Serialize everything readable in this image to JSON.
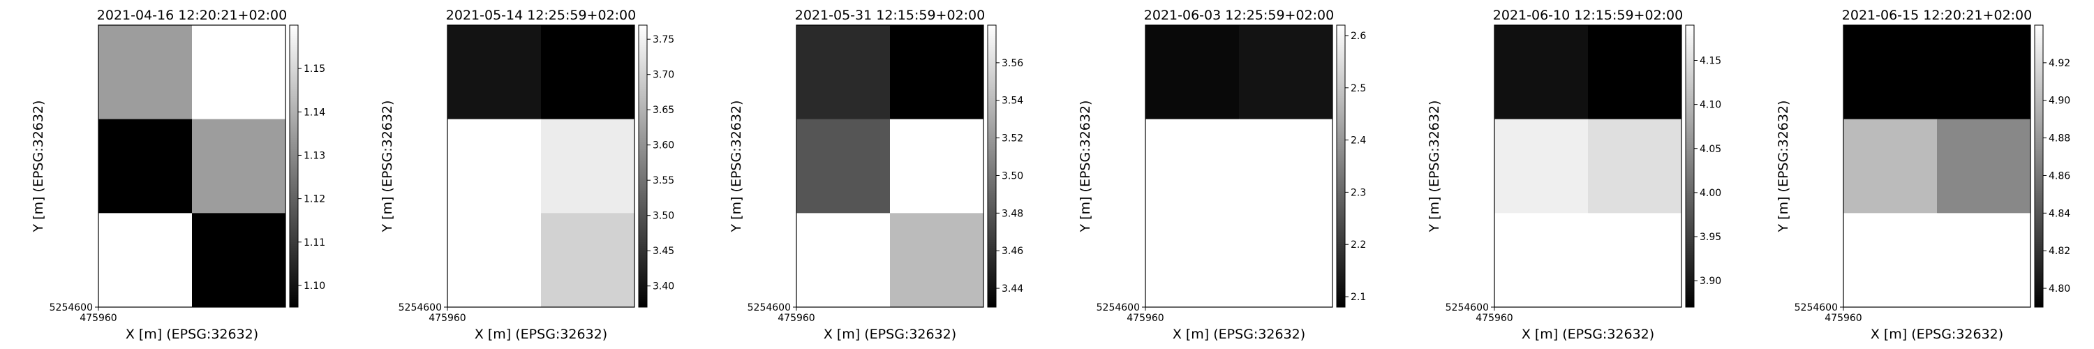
{
  "chart_data": [
    {
      "type": "heatmap",
      "title": "2021-04-16 12:20:21+02:00",
      "xlabel": "X [m] (EPSG:32632)",
      "ylabel": "Y [m] (EPSG:32632)",
      "x_tick_label": "475960",
      "y_tick_label": "5254600",
      "colormap": "grayscale",
      "grid": [
        [
          1.135,
          1.16
        ],
        [
          1.095,
          1.135
        ],
        [
          1.16,
          1.095
        ]
      ],
      "colorbar": {
        "range": [
          1.095,
          1.16
        ],
        "ticks": [
          "1.10",
          "1.11",
          "1.12",
          "1.13",
          "1.14",
          "1.15"
        ]
      }
    },
    {
      "type": "heatmap",
      "title": "2021-05-14 12:25:59+02:00",
      "xlabel": "X [m] (EPSG:32632)",
      "ylabel": "Y [m] (EPSG:32632)",
      "x_tick_label": "475960",
      "y_tick_label": "5254600",
      "colormap": "grayscale",
      "grid": [
        [
          3.4,
          3.37
        ],
        [
          3.77,
          3.74
        ],
        [
          3.77,
          3.7
        ]
      ],
      "colorbar": {
        "range": [
          3.37,
          3.77
        ],
        "ticks": [
          "3.40",
          "3.45",
          "3.50",
          "3.55",
          "3.60",
          "3.65",
          "3.70",
          "3.75"
        ]
      }
    },
    {
      "type": "heatmap",
      "title": "2021-05-31 12:15:59+02:00",
      "xlabel": "X [m] (EPSG:32632)",
      "ylabel": "Y [m] (EPSG:32632)",
      "x_tick_label": "475960",
      "y_tick_label": "5254600",
      "colormap": "grayscale",
      "grid": [
        [
          3.455,
          3.43
        ],
        [
          3.48,
          3.58
        ],
        [
          3.58,
          3.54
        ]
      ],
      "colorbar": {
        "range": [
          3.43,
          3.58
        ],
        "ticks": [
          "3.44",
          "3.46",
          "3.48",
          "3.50",
          "3.52",
          "3.54",
          "3.56"
        ]
      }
    },
    {
      "type": "heatmap",
      "title": "2021-06-03 12:25:59+02:00",
      "xlabel": "X [m] (EPSG:32632)",
      "ylabel": "Y [m] (EPSG:32632)",
      "x_tick_label": "475960",
      "y_tick_label": "5254600",
      "colormap": "grayscale",
      "grid": [
        [
          2.1,
          2.12
        ],
        [
          2.62,
          2.62
        ],
        [
          2.62,
          2.62
        ]
      ],
      "colorbar": {
        "range": [
          2.08,
          2.62
        ],
        "ticks": [
          "2.1",
          "2.2",
          "2.3",
          "2.4",
          "2.5",
          "2.6"
        ]
      }
    },
    {
      "type": "heatmap",
      "title": "2021-06-10 12:15:59+02:00",
      "xlabel": "X [m] (EPSG:32632)",
      "ylabel": "Y [m] (EPSG:32632)",
      "x_tick_label": "475960",
      "y_tick_label": "5254600",
      "colormap": "grayscale",
      "grid": [
        [
          3.89,
          3.87
        ],
        [
          4.17,
          4.15
        ],
        [
          4.19,
          4.19
        ]
      ],
      "colorbar": {
        "range": [
          3.87,
          4.19
        ],
        "ticks": [
          "3.90",
          "3.95",
          "4.00",
          "4.05",
          "4.10",
          "4.15"
        ]
      }
    },
    {
      "type": "heatmap",
      "title": "2021-06-15 12:20:21+02:00",
      "xlabel": "X [m] (EPSG:32632)",
      "ylabel": "Y [m] (EPSG:32632)",
      "x_tick_label": "475960",
      "y_tick_label": "5254600",
      "colormap": "grayscale",
      "grid": [
        [
          4.79,
          4.79
        ],
        [
          4.9,
          4.87
        ],
        [
          4.94,
          4.94
        ]
      ],
      "colorbar": {
        "range": [
          4.79,
          4.94
        ],
        "ticks": [
          "4.80",
          "4.82",
          "4.84",
          "4.86",
          "4.88",
          "4.90",
          "4.92"
        ]
      }
    }
  ]
}
